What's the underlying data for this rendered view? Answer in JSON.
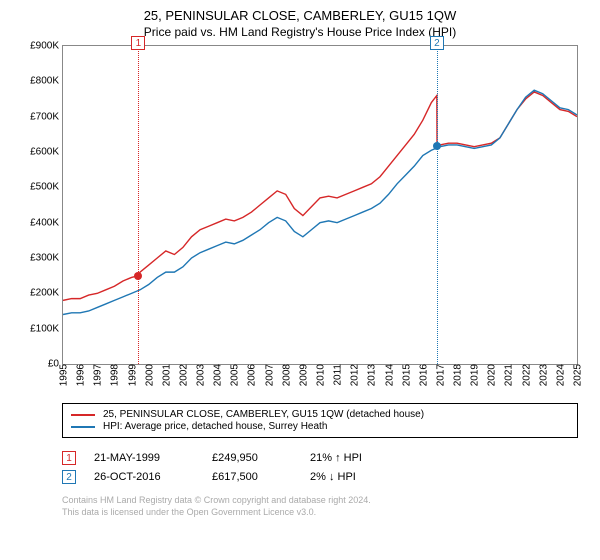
{
  "title": "25, PENINSULAR CLOSE, CAMBERLEY, GU15 1QW",
  "subtitle": "Price paid vs. HM Land Registry's House Price Index (HPI)",
  "chart": {
    "type": "line",
    "ylabel_prefix": "£",
    "ylim": [
      0,
      900
    ],
    "ytick_step": 100,
    "yticks": [
      "£0",
      "£100K",
      "£200K",
      "£300K",
      "£400K",
      "£500K",
      "£600K",
      "£700K",
      "£800K",
      "£900K"
    ],
    "xlim": [
      1995,
      2025
    ],
    "xticks": [
      1995,
      1996,
      1997,
      1998,
      1999,
      2000,
      2001,
      2002,
      2003,
      2004,
      2005,
      2006,
      2007,
      2008,
      2009,
      2010,
      2011,
      2012,
      2013,
      2014,
      2015,
      2016,
      2017,
      2018,
      2019,
      2020,
      2021,
      2022,
      2023,
      2024,
      2025
    ],
    "background_color": "#ffffff",
    "border_color": "#888888",
    "line_width": 1.4,
    "series": [
      {
        "name": "property",
        "label": "25, PENINSULAR CLOSE, CAMBERLEY, GU15 1QW (detached house)",
        "color": "#d62728",
        "points": [
          [
            1995,
            180
          ],
          [
            1995.5,
            185
          ],
          [
            1996,
            185
          ],
          [
            1996.5,
            195
          ],
          [
            1997,
            200
          ],
          [
            1997.5,
            210
          ],
          [
            1998,
            220
          ],
          [
            1998.5,
            235
          ],
          [
            1999,
            245
          ],
          [
            1999.4,
            250
          ],
          [
            1999.5,
            260
          ],
          [
            2000,
            280
          ],
          [
            2000.5,
            300
          ],
          [
            2001,
            320
          ],
          [
            2001.5,
            310
          ],
          [
            2002,
            330
          ],
          [
            2002.5,
            360
          ],
          [
            2003,
            380
          ],
          [
            2003.5,
            390
          ],
          [
            2004,
            400
          ],
          [
            2004.5,
            410
          ],
          [
            2005,
            405
          ],
          [
            2005.5,
            415
          ],
          [
            2006,
            430
          ],
          [
            2006.5,
            450
          ],
          [
            2007,
            470
          ],
          [
            2007.5,
            490
          ],
          [
            2008,
            480
          ],
          [
            2008.5,
            440
          ],
          [
            2009,
            420
          ],
          [
            2009.5,
            445
          ],
          [
            2010,
            470
          ],
          [
            2010.5,
            475
          ],
          [
            2011,
            470
          ],
          [
            2011.5,
            480
          ],
          [
            2012,
            490
          ],
          [
            2012.5,
            500
          ],
          [
            2013,
            510
          ],
          [
            2013.5,
            530
          ],
          [
            2014,
            560
          ],
          [
            2014.5,
            590
          ],
          [
            2015,
            620
          ],
          [
            2015.5,
            650
          ],
          [
            2016,
            690
          ],
          [
            2016.5,
            740
          ],
          [
            2016.82,
            760
          ],
          [
            2016.83,
            617
          ],
          [
            2017,
            620
          ],
          [
            2017.5,
            625
          ],
          [
            2018,
            625
          ],
          [
            2018.5,
            620
          ],
          [
            2019,
            615
          ],
          [
            2019.5,
            620
          ],
          [
            2020,
            625
          ],
          [
            2020.5,
            640
          ],
          [
            2021,
            680
          ],
          [
            2021.5,
            720
          ],
          [
            2022,
            750
          ],
          [
            2022.5,
            770
          ],
          [
            2023,
            760
          ],
          [
            2023.5,
            740
          ],
          [
            2024,
            720
          ],
          [
            2024.5,
            715
          ],
          [
            2025,
            700
          ]
        ]
      },
      {
        "name": "hpi",
        "label": "HPI: Average price, detached house, Surrey Heath",
        "color": "#1f77b4",
        "points": [
          [
            1995,
            140
          ],
          [
            1995.5,
            145
          ],
          [
            1996,
            145
          ],
          [
            1996.5,
            150
          ],
          [
            1997,
            160
          ],
          [
            1997.5,
            170
          ],
          [
            1998,
            180
          ],
          [
            1998.5,
            190
          ],
          [
            1999,
            200
          ],
          [
            1999.5,
            210
          ],
          [
            2000,
            225
          ],
          [
            2000.5,
            245
          ],
          [
            2001,
            260
          ],
          [
            2001.5,
            260
          ],
          [
            2002,
            275
          ],
          [
            2002.5,
            300
          ],
          [
            2003,
            315
          ],
          [
            2003.5,
            325
          ],
          [
            2004,
            335
          ],
          [
            2004.5,
            345
          ],
          [
            2005,
            340
          ],
          [
            2005.5,
            350
          ],
          [
            2006,
            365
          ],
          [
            2006.5,
            380
          ],
          [
            2007,
            400
          ],
          [
            2007.5,
            415
          ],
          [
            2008,
            405
          ],
          [
            2008.5,
            375
          ],
          [
            2009,
            360
          ],
          [
            2009.5,
            380
          ],
          [
            2010,
            400
          ],
          [
            2010.5,
            405
          ],
          [
            2011,
            400
          ],
          [
            2011.5,
            410
          ],
          [
            2012,
            420
          ],
          [
            2012.5,
            430
          ],
          [
            2013,
            440
          ],
          [
            2013.5,
            455
          ],
          [
            2014,
            480
          ],
          [
            2014.5,
            510
          ],
          [
            2015,
            535
          ],
          [
            2015.5,
            560
          ],
          [
            2016,
            590
          ],
          [
            2016.5,
            605
          ],
          [
            2017,
            615
          ],
          [
            2017.5,
            620
          ],
          [
            2018,
            620
          ],
          [
            2018.5,
            615
          ],
          [
            2019,
            610
          ],
          [
            2019.5,
            615
          ],
          [
            2020,
            620
          ],
          [
            2020.5,
            640
          ],
          [
            2021,
            680
          ],
          [
            2021.5,
            720
          ],
          [
            2022,
            755
          ],
          [
            2022.5,
            775
          ],
          [
            2023,
            765
          ],
          [
            2023.5,
            745
          ],
          [
            2024,
            725
          ],
          [
            2024.5,
            720
          ],
          [
            2025,
            705
          ]
        ]
      }
    ],
    "markers": [
      {
        "num": "1",
        "x": 1999.4,
        "y": 250,
        "line_color": "#d62728",
        "dot_color": "#d62728"
      },
      {
        "num": "2",
        "x": 2016.82,
        "y": 617,
        "line_color": "#1f77b4",
        "dot_color": "#1f77b4"
      }
    ]
  },
  "legend": [
    {
      "color": "#d62728",
      "text": "25, PENINSULAR CLOSE, CAMBERLEY, GU15 1QW (detached house)"
    },
    {
      "color": "#1f77b4",
      "text": "HPI: Average price, detached house, Surrey Heath"
    }
  ],
  "sales": [
    {
      "num": "1",
      "box_color": "#d62728",
      "date": "21-MAY-1999",
      "price": "£249,950",
      "delta": "21% ↑ HPI"
    },
    {
      "num": "2",
      "box_color": "#1f77b4",
      "date": "26-OCT-2016",
      "price": "£617,500",
      "delta": "2% ↓ HPI"
    }
  ],
  "footer": {
    "line1": "Contains HM Land Registry data © Crown copyright and database right 2024.",
    "line2": "This data is licensed under the Open Government Licence v3.0."
  }
}
